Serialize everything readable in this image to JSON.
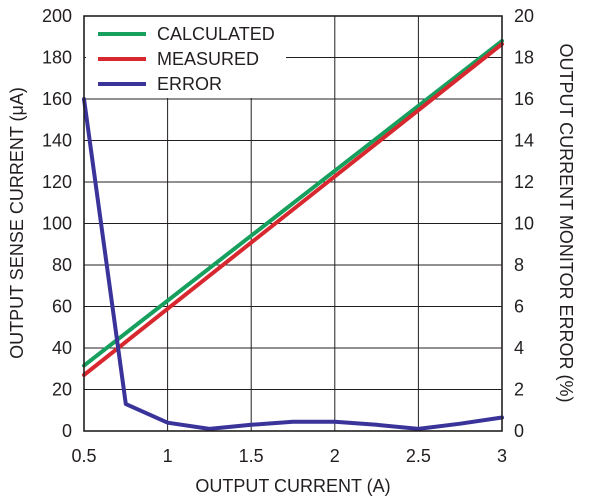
{
  "chart_data": {
    "type": "line",
    "xlabel": "OUTPUT CURRENT (A)",
    "ylabel": "OUTPUT SENSE CURRENT (μA)",
    "y2label": "OUTPUT CURRENT MONITOR ERROR (%)",
    "xlim": [
      0.5,
      3
    ],
    "ylim": [
      0,
      200
    ],
    "y2lim": [
      0,
      20
    ],
    "x_ticks": [
      "0.5",
      "1",
      "1.5",
      "2",
      "2.5",
      "3"
    ],
    "y_ticks": [
      "0",
      "20",
      "40",
      "60",
      "80",
      "100",
      "120",
      "140",
      "160",
      "180",
      "200"
    ],
    "y2_ticks": [
      "0",
      "2",
      "4",
      "6",
      "8",
      "10",
      "12",
      "14",
      "16",
      "18",
      "20"
    ],
    "grid": true,
    "legend_position": "top-left",
    "series": [
      {
        "name": "CALCULATED",
        "axis": "left",
        "color": "#17a05d",
        "x": [
          0.5,
          3.0
        ],
        "y": [
          31.5,
          188.0
        ]
      },
      {
        "name": "MEASURED",
        "axis": "left",
        "color": "#d7282f",
        "x": [
          0.5,
          3.0
        ],
        "y": [
          27.0,
          186.5
        ]
      },
      {
        "name": "ERROR",
        "axis": "right",
        "color": "#3a3399",
        "x": [
          0.5,
          0.75,
          1.0,
          1.25,
          1.5,
          1.75,
          2.0,
          2.25,
          2.5,
          2.75,
          3.0
        ],
        "y": [
          16.0,
          1.3,
          0.4,
          0.1,
          0.3,
          0.45,
          0.45,
          0.3,
          0.1,
          0.35,
          0.65
        ]
      }
    ]
  }
}
